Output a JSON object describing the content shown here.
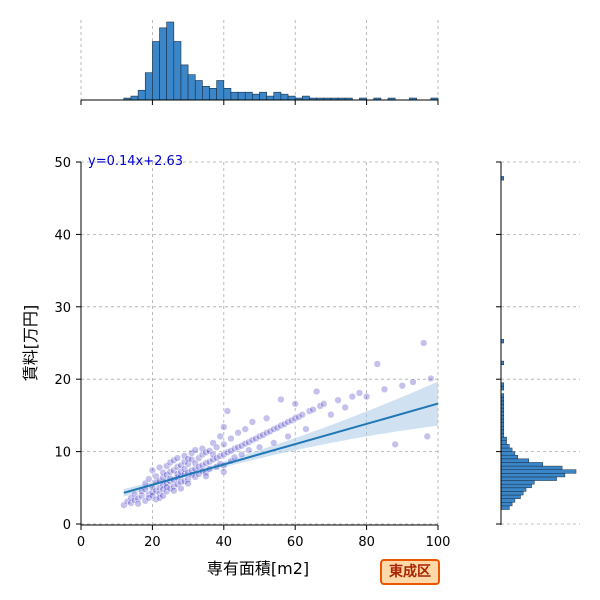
{
  "badge": {
    "label": "東成区"
  },
  "chart_data": [
    {
      "type": "scatter",
      "title": "",
      "xlabel": "専有面積[m2]",
      "ylabel": "賃料[万円]",
      "xlim": [
        0,
        100
      ],
      "ylim": [
        0,
        50
      ],
      "xticks": [
        0,
        20,
        40,
        60,
        80,
        100
      ],
      "yticks": [
        0,
        10,
        20,
        30,
        40,
        50
      ],
      "grid": true,
      "annotation": "y=0.14x+2.63",
      "regression": {
        "slope": 0.14,
        "intercept": 2.63,
        "x_range": [
          12,
          100
        ]
      },
      "colors": {
        "points": "#2a1fbf",
        "line": "#1f77b4",
        "band": "#a9c8e8"
      },
      "points": [
        [
          12,
          2.6
        ],
        [
          13,
          3.1
        ],
        [
          14,
          2.9
        ],
        [
          14,
          3.6
        ],
        [
          15,
          3.3
        ],
        [
          15,
          4.1
        ],
        [
          16,
          3.5
        ],
        [
          16,
          2.8
        ],
        [
          17,
          3.9
        ],
        [
          17,
          4.5
        ],
        [
          18,
          3.2
        ],
        [
          18,
          4.8
        ],
        [
          18,
          5.6
        ],
        [
          19,
          4.1
        ],
        [
          19,
          3.6
        ],
        [
          19,
          6.2
        ],
        [
          20,
          4.4
        ],
        [
          20,
          5.1
        ],
        [
          20,
          3.9
        ],
        [
          20,
          7.4
        ],
        [
          21,
          4.6
        ],
        [
          21,
          5.8
        ],
        [
          21,
          3.4
        ],
        [
          21,
          6.6
        ],
        [
          22,
          5.0
        ],
        [
          22,
          4.2
        ],
        [
          22,
          6.0
        ],
        [
          22,
          7.8
        ],
        [
          22,
          3.6
        ],
        [
          23,
          5.4
        ],
        [
          23,
          4.8
        ],
        [
          23,
          6.4
        ],
        [
          23,
          7.1
        ],
        [
          23,
          3.9
        ],
        [
          24,
          5.6
        ],
        [
          24,
          4.5
        ],
        [
          24,
          6.8
        ],
        [
          24,
          8.0
        ],
        [
          24,
          5.1
        ],
        [
          25,
          5.9
        ],
        [
          25,
          4.9
        ],
        [
          25,
          7.2
        ],
        [
          25,
          6.3
        ],
        [
          25,
          8.5
        ],
        [
          26,
          6.1
        ],
        [
          26,
          5.2
        ],
        [
          26,
          7.4
        ],
        [
          26,
          4.6
        ],
        [
          26,
          8.8
        ],
        [
          27,
          6.4
        ],
        [
          27,
          5.5
        ],
        [
          27,
          7.9
        ],
        [
          27,
          6.9
        ],
        [
          27,
          9.1
        ],
        [
          28,
          6.6
        ],
        [
          28,
          5.8
        ],
        [
          28,
          8.1
        ],
        [
          28,
          7.2
        ],
        [
          28,
          4.9
        ],
        [
          29,
          6.9
        ],
        [
          29,
          7.6
        ],
        [
          29,
          8.6
        ],
        [
          29,
          5.9
        ],
        [
          29,
          9.4
        ],
        [
          30,
          7.1
        ],
        [
          30,
          6.2
        ],
        [
          30,
          8.3
        ],
        [
          30,
          9.0
        ],
        [
          30,
          5.6
        ],
        [
          31,
          7.4
        ],
        [
          31,
          6.8
        ],
        [
          31,
          8.9
        ],
        [
          31,
          9.8
        ],
        [
          32,
          7.6
        ],
        [
          32,
          6.5
        ],
        [
          32,
          8.4
        ],
        [
          32,
          10.2
        ],
        [
          33,
          7.9
        ],
        [
          33,
          9.1
        ],
        [
          33,
          6.9
        ],
        [
          34,
          8.1
        ],
        [
          34,
          9.6
        ],
        [
          34,
          7.3
        ],
        [
          34,
          10.4
        ],
        [
          35,
          8.4
        ],
        [
          35,
          7.1
        ],
        [
          35,
          9.9
        ],
        [
          35,
          6.6
        ],
        [
          36,
          8.6
        ],
        [
          36,
          10.1
        ],
        [
          36,
          7.6
        ],
        [
          37,
          8.9
        ],
        [
          37,
          9.6
        ],
        [
          37,
          11.2
        ],
        [
          38,
          9.1
        ],
        [
          38,
          7.9
        ],
        [
          38,
          10.6
        ],
        [
          39,
          9.4
        ],
        [
          39,
          8.3
        ],
        [
          39,
          12.1
        ],
        [
          40,
          9.6
        ],
        [
          40,
          8.1
        ],
        [
          40,
          11.0
        ],
        [
          40,
          13.4
        ],
        [
          40,
          7.2
        ],
        [
          41,
          9.9
        ],
        [
          41,
          15.6
        ],
        [
          42,
          10.1
        ],
        [
          42,
          8.7
        ],
        [
          42,
          11.8
        ],
        [
          43,
          10.4
        ],
        [
          43,
          9.2
        ],
        [
          44,
          10.6
        ],
        [
          44,
          12.6
        ],
        [
          45,
          10.8
        ],
        [
          45,
          9.6
        ],
        [
          46,
          11.1
        ],
        [
          46,
          13.1
        ],
        [
          47,
          11.3
        ],
        [
          47,
          10.2
        ],
        [
          48,
          11.6
        ],
        [
          48,
          14.1
        ],
        [
          49,
          11.8
        ],
        [
          50,
          12.1
        ],
        [
          50,
          10.6
        ],
        [
          51,
          12.3
        ],
        [
          52,
          12.6
        ],
        [
          52,
          14.6
        ],
        [
          53,
          12.8
        ],
        [
          54,
          13.1
        ],
        [
          54,
          11.2
        ],
        [
          55,
          13.3
        ],
        [
          56,
          13.6
        ],
        [
          56,
          17.2
        ],
        [
          57,
          13.8
        ],
        [
          58,
          14.1
        ],
        [
          58,
          12.1
        ],
        [
          59,
          14.3
        ],
        [
          60,
          14.6
        ],
        [
          60,
          16.6
        ],
        [
          61,
          14.8
        ],
        [
          62,
          15.1
        ],
        [
          63,
          13.1
        ],
        [
          64,
          15.6
        ],
        [
          65,
          15.8
        ],
        [
          66,
          18.3
        ],
        [
          67,
          16.3
        ],
        [
          68,
          16.6
        ],
        [
          70,
          15.1
        ],
        [
          72,
          17.1
        ],
        [
          74,
          16.1
        ],
        [
          76,
          17.6
        ],
        [
          78,
          18.1
        ],
        [
          80,
          17.6
        ],
        [
          83,
          22.1
        ],
        [
          85,
          18.6
        ],
        [
          88,
          11.0
        ],
        [
          90,
          19.1
        ],
        [
          93,
          19.6
        ],
        [
          96,
          25.0
        ],
        [
          97,
          12.1
        ],
        [
          98,
          20.1
        ]
      ]
    },
    {
      "type": "bar",
      "orientation": "vertical",
      "role": "marginal histogram of 専有面積[m2]",
      "xlim": [
        0,
        100
      ],
      "bin_width": 2,
      "bin_start": 12,
      "counts": [
        1,
        2,
        5,
        14,
        30,
        37,
        40,
        30,
        18,
        13,
        10,
        7,
        6,
        10,
        6,
        4,
        4,
        4,
        3,
        4,
        2,
        4,
        3,
        2,
        1,
        2,
        1,
        1,
        1,
        1,
        1,
        1,
        0,
        1,
        0,
        1,
        0,
        1,
        0,
        0,
        1,
        0,
        0,
        1
      ],
      "colors": {
        "fill": "#3a86c8",
        "edge": "#1a2f45"
      }
    },
    {
      "type": "bar",
      "orientation": "horizontal",
      "role": "marginal histogram of 賃料[万円]",
      "ylim": [
        0,
        50
      ],
      "bin_width": 0.5,
      "bin_start": 2,
      "counts": [
        3,
        4,
        5,
        7,
        8,
        9,
        11,
        12,
        20,
        23,
        27,
        22,
        15,
        10,
        6,
        5,
        4,
        3,
        2,
        2,
        1,
        1,
        1,
        1,
        1,
        1,
        1,
        1,
        1,
        1,
        1,
        1,
        0,
        1,
        1,
        0,
        0,
        0,
        0,
        0,
        1,
        0,
        0,
        0,
        0,
        0,
        1,
        0,
        0,
        0,
        0,
        0,
        0,
        0,
        0,
        0,
        0,
        0,
        0,
        0,
        0,
        0,
        0,
        0,
        0,
        0,
        0,
        0,
        0,
        0,
        0,
        0,
        0,
        0,
        0,
        0,
        0,
        0,
        0,
        0,
        0,
        0,
        0,
        0,
        0,
        0,
        0,
        0,
        0,
        0,
        0,
        1
      ],
      "colors": {
        "fill": "#3a86c8",
        "edge": "#1a2f45"
      }
    }
  ]
}
